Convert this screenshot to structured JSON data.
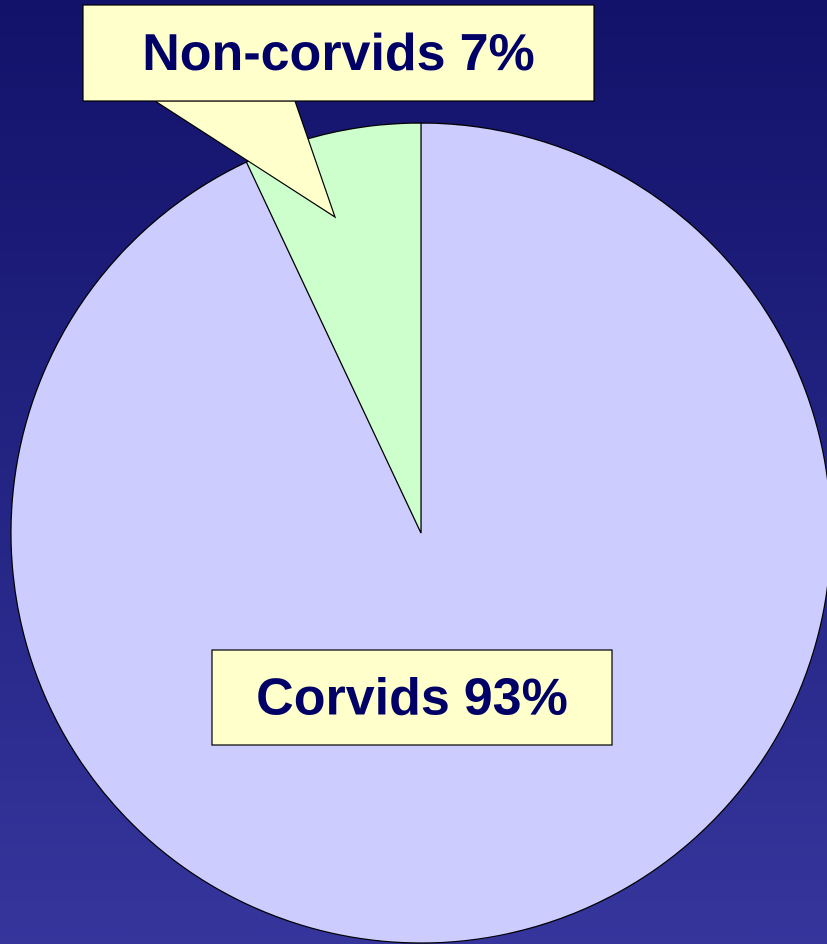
{
  "chart_data": {
    "type": "pie",
    "categories": [
      "Corvids",
      "Non-corvids"
    ],
    "values": [
      93,
      7
    ],
    "value_labels": [
      "93%",
      "7%"
    ],
    "colors": [
      "#ccccff",
      "#ccffcc"
    ]
  }
}
